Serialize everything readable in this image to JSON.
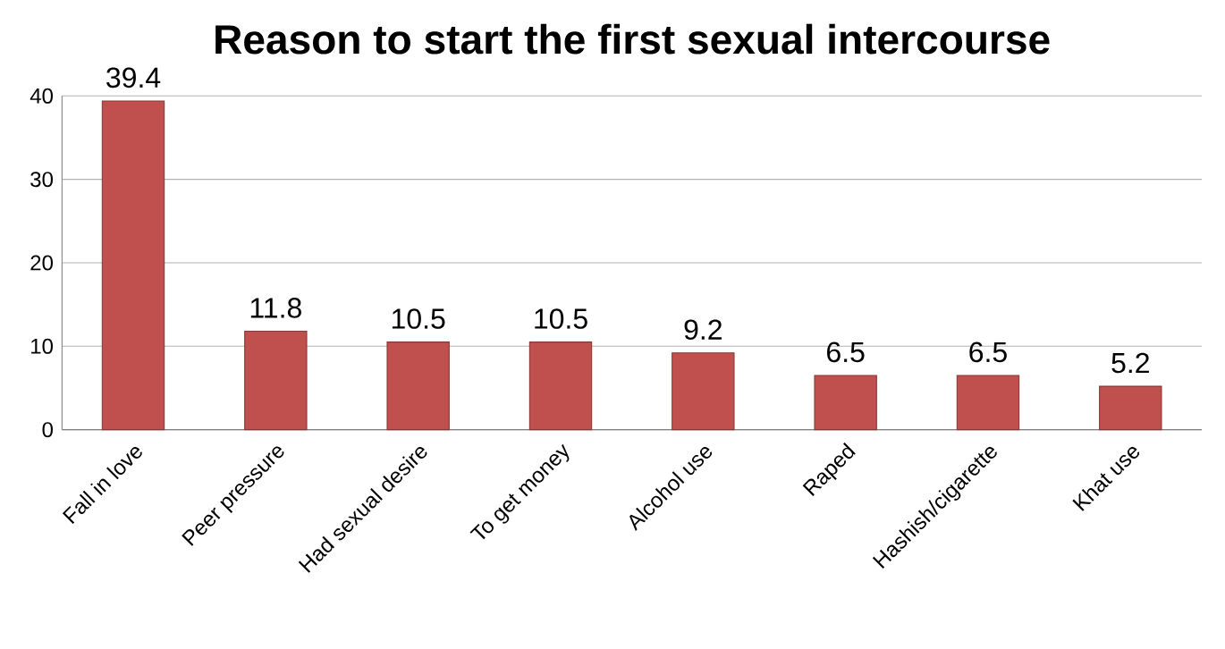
{
  "chart_data": {
    "type": "bar",
    "title": "Reason to start  the first sexual intercourse",
    "categories": [
      "Fall in love",
      "Peer pressure",
      "Had sexual desire",
      "To get money",
      "Alcohol use",
      "Raped",
      "Hashish/cigarette",
      "Khat use"
    ],
    "values": [
      39.4,
      11.8,
      10.5,
      10.5,
      9.2,
      6.5,
      6.5,
      5.2
    ],
    "color": "#c0504d",
    "ylim": [
      0,
      40
    ],
    "yticks": [
      0,
      10,
      20,
      30,
      40
    ],
    "grid": "y",
    "data_labels": true
  }
}
